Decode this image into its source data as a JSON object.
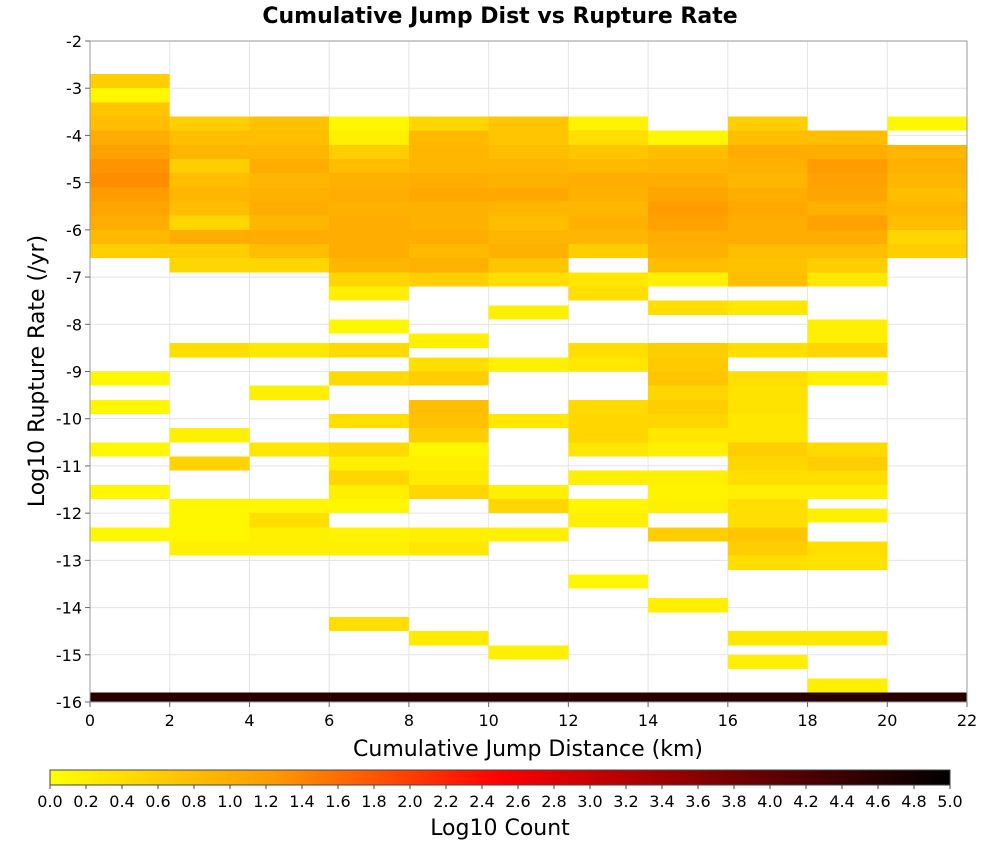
{
  "chart_data": {
    "type": "heatmap",
    "title": "Cumulative Jump Dist vs Rupture Rate",
    "xlabel": "Cumulative Jump Distance (km)",
    "ylabel": "Log10 Rupture Rate (/yr)",
    "xlim": [
      0,
      22
    ],
    "ylim": [
      -16,
      -2
    ],
    "x_ticks": [
      0,
      2,
      4,
      6,
      8,
      10,
      12,
      14,
      16,
      18,
      20,
      22
    ],
    "y_ticks": [
      -2,
      -3,
      -4,
      -5,
      -6,
      -7,
      -8,
      -9,
      -10,
      -11,
      -12,
      -13,
      -14,
      -15,
      -16
    ],
    "x_bin_width": 2,
    "y_bin_height": 0.3,
    "grid": true,
    "colorbar": {
      "label": "Log10 Count",
      "min": 0.0,
      "max": 5.0,
      "ticks": [
        "0.0",
        "0.2",
        "0.4",
        "0.6",
        "0.8",
        "1.0",
        "1.2",
        "1.4",
        "1.6",
        "1.8",
        "2.0",
        "2.2",
        "2.4",
        "2.6",
        "2.8",
        "3.0",
        "3.2",
        "3.4",
        "3.6",
        "3.8",
        "4.0",
        "4.2",
        "4.4",
        "4.6",
        "4.8",
        "5.0"
      ],
      "palette": [
        "#ffff00",
        "#ff9900",
        "#ff0000",
        "#7a0000",
        "#000000"
      ]
    },
    "columns": [
      {
        "x": [
          0,
          2
        ],
        "cells": [
          {
            "y": -2.85,
            "v": 0.6
          },
          {
            "y": -3.15,
            "v": 0.1
          },
          {
            "y": -3.45,
            "v": 0.7
          },
          {
            "y": -3.75,
            "v": 0.8
          },
          {
            "y": -4.05,
            "v": 1.0
          },
          {
            "y": -4.35,
            "v": 1.15
          },
          {
            "y": -4.65,
            "v": 1.3
          },
          {
            "y": -4.95,
            "v": 1.35
          },
          {
            "y": -5.25,
            "v": 1.2
          },
          {
            "y": -5.55,
            "v": 1.1
          },
          {
            "y": -5.85,
            "v": 1.0
          },
          {
            "y": -6.15,
            "v": 0.85
          },
          {
            "y": -6.45,
            "v": 0.6
          },
          {
            "y": -9.15,
            "v": 0.1
          },
          {
            "y": -9.75,
            "v": 0.1
          },
          {
            "y": -10.65,
            "v": 0.1
          },
          {
            "y": -11.55,
            "v": 0.1
          },
          {
            "y": -12.45,
            "v": 0.1
          },
          {
            "y": -15.95,
            "v": 4.6
          }
        ]
      },
      {
        "x": [
          2,
          4
        ],
        "cells": [
          {
            "y": -3.75,
            "v": 0.6
          },
          {
            "y": -4.05,
            "v": 0.8
          },
          {
            "y": -4.35,
            "v": 0.9
          },
          {
            "y": -4.65,
            "v": 0.6
          },
          {
            "y": -4.95,
            "v": 0.8
          },
          {
            "y": -5.25,
            "v": 0.9
          },
          {
            "y": -5.55,
            "v": 0.8
          },
          {
            "y": -5.85,
            "v": 0.5
          },
          {
            "y": -6.15,
            "v": 1.0
          },
          {
            "y": -6.45,
            "v": 0.6
          },
          {
            "y": -6.75,
            "v": 0.5
          },
          {
            "y": -8.55,
            "v": 0.4
          },
          {
            "y": -10.35,
            "v": 0.2
          },
          {
            "y": -10.95,
            "v": 0.55
          },
          {
            "y": -11.85,
            "v": 0.1
          },
          {
            "y": -12.15,
            "v": 0.1
          },
          {
            "y": -12.45,
            "v": 0.1
          },
          {
            "y": -12.75,
            "v": 0.2
          },
          {
            "y": -15.95,
            "v": 4.6
          }
        ]
      },
      {
        "x": [
          4,
          6
        ],
        "cells": [
          {
            "y": -3.75,
            "v": 0.75
          },
          {
            "y": -4.05,
            "v": 0.8
          },
          {
            "y": -4.35,
            "v": 0.9
          },
          {
            "y": -4.65,
            "v": 1.0
          },
          {
            "y": -4.95,
            "v": 0.9
          },
          {
            "y": -5.25,
            "v": 0.95
          },
          {
            "y": -5.55,
            "v": 1.0
          },
          {
            "y": -5.85,
            "v": 0.9
          },
          {
            "y": -6.15,
            "v": 1.0
          },
          {
            "y": -6.45,
            "v": 0.8
          },
          {
            "y": -6.75,
            "v": 0.5
          },
          {
            "y": -8.55,
            "v": 0.3
          },
          {
            "y": -9.45,
            "v": 0.2
          },
          {
            "y": -10.65,
            "v": 0.3
          },
          {
            "y": -11.85,
            "v": 0.1
          },
          {
            "y": -12.15,
            "v": 0.4
          },
          {
            "y": -12.45,
            "v": 0.2
          },
          {
            "y": -12.75,
            "v": 0.2
          },
          {
            "y": -15.95,
            "v": 4.6
          }
        ]
      },
      {
        "x": [
          6,
          8
        ],
        "cells": [
          {
            "y": -3.75,
            "v": 0.1
          },
          {
            "y": -4.05,
            "v": 0.2
          },
          {
            "y": -4.35,
            "v": 0.6
          },
          {
            "y": -4.65,
            "v": 0.8
          },
          {
            "y": -4.95,
            "v": 0.95
          },
          {
            "y": -5.25,
            "v": 1.0
          },
          {
            "y": -5.55,
            "v": 0.95
          },
          {
            "y": -5.85,
            "v": 1.0
          },
          {
            "y": -6.15,
            "v": 1.0
          },
          {
            "y": -6.45,
            "v": 1.0
          },
          {
            "y": -6.75,
            "v": 0.9
          },
          {
            "y": -7.05,
            "v": 0.5
          },
          {
            "y": -7.35,
            "v": 0.2
          },
          {
            "y": -8.05,
            "v": 0.1
          },
          {
            "y": -8.55,
            "v": 0.45
          },
          {
            "y": -9.15,
            "v": 0.45
          },
          {
            "y": -10.05,
            "v": 0.4
          },
          {
            "y": -10.65,
            "v": 0.45
          },
          {
            "y": -10.95,
            "v": 0.2
          },
          {
            "y": -11.25,
            "v": 0.5
          },
          {
            "y": -11.55,
            "v": 0.2
          },
          {
            "y": -11.85,
            "v": 0.1
          },
          {
            "y": -12.45,
            "v": 0.15
          },
          {
            "y": -12.75,
            "v": 0.2
          },
          {
            "y": -14.35,
            "v": 0.4
          },
          {
            "y": -15.95,
            "v": 4.6
          }
        ]
      },
      {
        "x": [
          8,
          10
        ],
        "cells": [
          {
            "y": -3.75,
            "v": 0.5
          },
          {
            "y": -4.05,
            "v": 0.85
          },
          {
            "y": -4.35,
            "v": 0.9
          },
          {
            "y": -4.65,
            "v": 0.9
          },
          {
            "y": -4.95,
            "v": 1.0
          },
          {
            "y": -5.25,
            "v": 1.05
          },
          {
            "y": -5.55,
            "v": 0.95
          },
          {
            "y": -5.85,
            "v": 0.95
          },
          {
            "y": -6.15,
            "v": 1.0
          },
          {
            "y": -6.45,
            "v": 0.85
          },
          {
            "y": -6.75,
            "v": 0.95
          },
          {
            "y": -7.05,
            "v": 0.6
          },
          {
            "y": -8.35,
            "v": 0.2
          },
          {
            "y": -8.85,
            "v": 0.4
          },
          {
            "y": -9.15,
            "v": 0.6
          },
          {
            "y": -9.75,
            "v": 0.8
          },
          {
            "y": -10.05,
            "v": 0.75
          },
          {
            "y": -10.35,
            "v": 0.6
          },
          {
            "y": -10.65,
            "v": 0.1
          },
          {
            "y": -10.95,
            "v": 0.2
          },
          {
            "y": -11.25,
            "v": 0.25
          },
          {
            "y": -11.55,
            "v": 0.5
          },
          {
            "y": -12.45,
            "v": 0.2
          },
          {
            "y": -12.75,
            "v": 0.3
          },
          {
            "y": -14.65,
            "v": 0.25
          },
          {
            "y": -15.95,
            "v": 4.6
          }
        ]
      },
      {
        "x": [
          10,
          12
        ],
        "cells": [
          {
            "y": -3.75,
            "v": 0.7
          },
          {
            "y": -4.05,
            "v": 0.7
          },
          {
            "y": -4.35,
            "v": 0.8
          },
          {
            "y": -4.65,
            "v": 0.9
          },
          {
            "y": -4.95,
            "v": 0.95
          },
          {
            "y": -5.25,
            "v": 1.05
          },
          {
            "y": -5.55,
            "v": 0.9
          },
          {
            "y": -5.85,
            "v": 0.8
          },
          {
            "y": -6.15,
            "v": 0.9
          },
          {
            "y": -6.45,
            "v": 0.95
          },
          {
            "y": -6.75,
            "v": 0.7
          },
          {
            "y": -7.05,
            "v": 0.4
          },
          {
            "y": -7.75,
            "v": 0.2
          },
          {
            "y": -8.85,
            "v": 0.2
          },
          {
            "y": -10.05,
            "v": 0.3
          },
          {
            "y": -11.55,
            "v": 0.2
          },
          {
            "y": -11.85,
            "v": 0.5
          },
          {
            "y": -12.45,
            "v": 0.2
          },
          {
            "y": -14.95,
            "v": 0.2
          },
          {
            "y": -15.95,
            "v": 4.6
          }
        ]
      },
      {
        "x": [
          12,
          14
        ],
        "cells": [
          {
            "y": -3.75,
            "v": 0.15
          },
          {
            "y": -4.05,
            "v": 0.4
          },
          {
            "y": -4.35,
            "v": 0.7
          },
          {
            "y": -4.65,
            "v": 0.85
          },
          {
            "y": -4.95,
            "v": 1.0
          },
          {
            "y": -5.25,
            "v": 0.95
          },
          {
            "y": -5.55,
            "v": 0.9
          },
          {
            "y": -5.85,
            "v": 0.95
          },
          {
            "y": -6.15,
            "v": 0.9
          },
          {
            "y": -6.45,
            "v": 0.6
          },
          {
            "y": -7.05,
            "v": 0.3
          },
          {
            "y": -7.35,
            "v": 0.4
          },
          {
            "y": -8.55,
            "v": 0.4
          },
          {
            "y": -8.85,
            "v": 0.3
          },
          {
            "y": -9.75,
            "v": 0.45
          },
          {
            "y": -10.05,
            "v": 0.5
          },
          {
            "y": -10.35,
            "v": 0.5
          },
          {
            "y": -10.65,
            "v": 0.3
          },
          {
            "y": -11.25,
            "v": 0.2
          },
          {
            "y": -11.85,
            "v": 0.1
          },
          {
            "y": -12.15,
            "v": 0.2
          },
          {
            "y": -13.45,
            "v": 0.1
          },
          {
            "y": -15.95,
            "v": 4.6
          }
        ]
      },
      {
        "x": [
          14,
          16
        ],
        "cells": [
          {
            "y": -4.05,
            "v": 0.1
          },
          {
            "y": -4.35,
            "v": 0.8
          },
          {
            "y": -4.65,
            "v": 0.9
          },
          {
            "y": -4.95,
            "v": 1.0
          },
          {
            "y": -5.25,
            "v": 1.1
          },
          {
            "y": -5.55,
            "v": 1.2
          },
          {
            "y": -5.85,
            "v": 1.15
          },
          {
            "y": -6.15,
            "v": 1.0
          },
          {
            "y": -6.45,
            "v": 0.95
          },
          {
            "y": -6.75,
            "v": 0.8
          },
          {
            "y": -7.05,
            "v": 0.2
          },
          {
            "y": -7.65,
            "v": 0.4
          },
          {
            "y": -8.55,
            "v": 0.6
          },
          {
            "y": -8.85,
            "v": 0.65
          },
          {
            "y": -9.15,
            "v": 0.7
          },
          {
            "y": -9.45,
            "v": 0.5
          },
          {
            "y": -9.75,
            "v": 0.6
          },
          {
            "y": -10.05,
            "v": 0.5
          },
          {
            "y": -10.35,
            "v": 0.3
          },
          {
            "y": -10.65,
            "v": 0.2
          },
          {
            "y": -11.25,
            "v": 0.2
          },
          {
            "y": -11.55,
            "v": 0.15
          },
          {
            "y": -11.85,
            "v": 0.2
          },
          {
            "y": -12.45,
            "v": 0.6
          },
          {
            "y": -13.95,
            "v": 0.2
          },
          {
            "y": -15.95,
            "v": 4.6
          }
        ]
      },
      {
        "x": [
          16,
          18
        ],
        "cells": [
          {
            "y": -3.75,
            "v": 0.6
          },
          {
            "y": -4.05,
            "v": 0.8
          },
          {
            "y": -4.35,
            "v": 1.0
          },
          {
            "y": -4.65,
            "v": 0.95
          },
          {
            "y": -4.95,
            "v": 0.9
          },
          {
            "y": -5.25,
            "v": 1.0
          },
          {
            "y": -5.55,
            "v": 1.05
          },
          {
            "y": -5.85,
            "v": 1.0
          },
          {
            "y": -6.15,
            "v": 1.0
          },
          {
            "y": -6.45,
            "v": 0.8
          },
          {
            "y": -6.75,
            "v": 0.75
          },
          {
            "y": -7.05,
            "v": 0.8
          },
          {
            "y": -7.65,
            "v": 0.3
          },
          {
            "y": -8.55,
            "v": 0.4
          },
          {
            "y": -9.15,
            "v": 0.4
          },
          {
            "y": -9.45,
            "v": 0.35
          },
          {
            "y": -9.75,
            "v": 0.35
          },
          {
            "y": -10.05,
            "v": 0.3
          },
          {
            "y": -10.35,
            "v": 0.3
          },
          {
            "y": -10.65,
            "v": 0.6
          },
          {
            "y": -10.95,
            "v": 0.5
          },
          {
            "y": -11.25,
            "v": 0.4
          },
          {
            "y": -11.55,
            "v": 0.2
          },
          {
            "y": -11.85,
            "v": 0.4
          },
          {
            "y": -12.15,
            "v": 0.4
          },
          {
            "y": -12.45,
            "v": 0.7
          },
          {
            "y": -12.75,
            "v": 0.6
          },
          {
            "y": -13.05,
            "v": 0.4
          },
          {
            "y": -14.65,
            "v": 0.3
          },
          {
            "y": -15.15,
            "v": 0.2
          },
          {
            "y": -15.95,
            "v": 4.6
          }
        ]
      },
      {
        "x": [
          18,
          20
        ],
        "cells": [
          {
            "y": -4.05,
            "v": 0.8
          },
          {
            "y": -4.35,
            "v": 1.0
          },
          {
            "y": -4.65,
            "v": 1.2
          },
          {
            "y": -4.95,
            "v": 1.15
          },
          {
            "y": -5.25,
            "v": 1.1
          },
          {
            "y": -5.55,
            "v": 0.95
          },
          {
            "y": -5.85,
            "v": 1.15
          },
          {
            "y": -6.15,
            "v": 1.0
          },
          {
            "y": -6.45,
            "v": 0.8
          },
          {
            "y": -6.75,
            "v": 0.6
          },
          {
            "y": -7.05,
            "v": 0.3
          },
          {
            "y": -8.05,
            "v": 0.2
          },
          {
            "y": -8.35,
            "v": 0.2
          },
          {
            "y": -8.55,
            "v": 0.5
          },
          {
            "y": -9.15,
            "v": 0.2
          },
          {
            "y": -10.65,
            "v": 0.45
          },
          {
            "y": -10.95,
            "v": 0.6
          },
          {
            "y": -11.25,
            "v": 0.4
          },
          {
            "y": -11.55,
            "v": 0.2
          },
          {
            "y": -12.05,
            "v": 0.2
          },
          {
            "y": -12.75,
            "v": 0.4
          },
          {
            "y": -13.05,
            "v": 0.35
          },
          {
            "y": -14.65,
            "v": 0.3
          },
          {
            "y": -15.65,
            "v": 0.2
          },
          {
            "y": -15.95,
            "v": 4.6
          }
        ]
      },
      {
        "x": [
          20,
          22
        ],
        "cells": [
          {
            "y": -3.75,
            "v": 0.1
          },
          {
            "y": -4.35,
            "v": 0.9
          },
          {
            "y": -4.65,
            "v": 0.95
          },
          {
            "y": -4.95,
            "v": 0.9
          },
          {
            "y": -5.25,
            "v": 0.8
          },
          {
            "y": -5.55,
            "v": 0.9
          },
          {
            "y": -5.85,
            "v": 0.8
          },
          {
            "y": -6.15,
            "v": 0.5
          },
          {
            "y": -6.45,
            "v": 0.6
          },
          {
            "y": -15.95,
            "v": 4.6
          }
        ]
      }
    ]
  }
}
